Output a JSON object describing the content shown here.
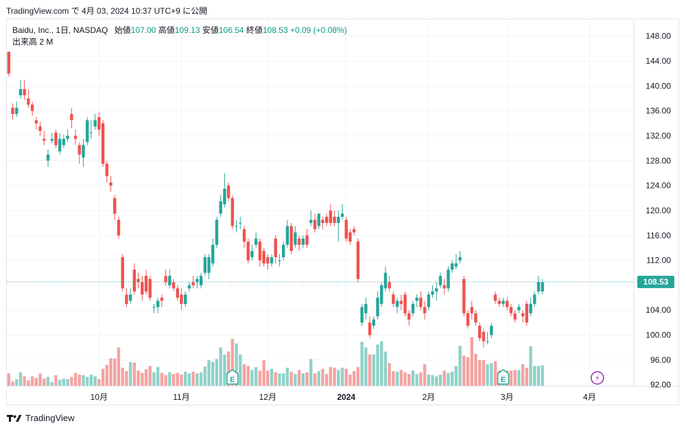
{
  "caption": "TradingView.com で 4月 03, 2024 10:37 UTC+9 に公開",
  "legend": {
    "symbol": "Baidu, Inc., 1日, NASDAQ",
    "open_label": "始値",
    "open": "107.00",
    "high_label": "高値",
    "high": "109.13",
    "low_label": "安値",
    "low": "106.54",
    "close_label": "終値",
    "close": "108.53",
    "change": "+0.09 (+0.08%)",
    "volume_label": "出来高",
    "volume": "2 M"
  },
  "price_badge": "108.53",
  "footer": {
    "brand": "TradingView"
  },
  "colors": {
    "up": "#26a69a",
    "down": "#ef5350",
    "vol_up": "#8fd1c8",
    "vol_down": "#f4a3a1",
    "grid": "#f0f3fa",
    "axis_text": "#131722"
  },
  "chart_data": {
    "type": "candlestick",
    "symbol": "Baidu, Inc. (BIDU), NASDAQ, 1D",
    "y_axis_ticks": [
      92,
      96,
      100,
      104,
      108,
      112,
      116,
      120,
      124,
      128,
      132,
      136,
      140,
      144,
      148
    ],
    "y_tick_labels": [
      "92.00",
      "96.00",
      "100.00",
      "104.00",
      "108.00",
      "112.00",
      "116.00",
      "120.00",
      "124.00",
      "128.00",
      "132.00",
      "136.00",
      "140.00",
      "144.00",
      "148.00"
    ],
    "ylim": [
      91.8,
      150.5
    ],
    "last_price": 108.53,
    "x_axis_labels": [
      {
        "label": "10月",
        "bold": false,
        "index": 23
      },
      {
        "label": "11月",
        "bold": false,
        "index": 44
      },
      {
        "label": "12月",
        "bold": false,
        "index": 66
      },
      {
        "label": "2024",
        "bold": true,
        "index": 86
      },
      {
        "label": "2月",
        "bold": false,
        "index": 107
      },
      {
        "label": "3月",
        "bold": false,
        "index": 127
      },
      {
        "label": "4月",
        "bold": false,
        "index": 148
      }
    ],
    "events": [
      {
        "type": "earnings",
        "label": "E",
        "index": 57
      },
      {
        "type": "earnings",
        "label": "E",
        "index": 126
      },
      {
        "type": "dividend",
        "label": "⚡",
        "index": 150
      }
    ],
    "candles": [
      [
        145.5,
        142.0,
        145.5,
        141.5
      ],
      [
        136.5,
        135.5,
        137.2,
        134.6
      ],
      [
        135.5,
        136.5,
        137.5,
        135.0
      ],
      [
        138.5,
        139.5,
        141.0,
        138.0
      ],
      [
        139.5,
        138.5,
        141.0,
        137.8
      ],
      [
        138.0,
        137.0,
        139.5,
        136.5
      ],
      [
        137.0,
        136.0,
        137.5,
        135.2
      ],
      [
        134.5,
        134.0,
        135.0,
        133.0
      ],
      [
        133.5,
        132.8,
        134.2,
        132.0
      ],
      [
        131.5,
        131.2,
        132.8,
        130.5
      ],
      [
        128.0,
        129.0,
        129.8,
        127.0
      ],
      [
        131.2,
        131.5,
        132.5,
        130.8
      ],
      [
        132.5,
        130.5,
        133.0,
        130.0
      ],
      [
        129.5,
        131.5,
        132.4,
        129.0
      ],
      [
        130.5,
        131.5,
        132.2,
        130.0
      ],
      [
        131.5,
        132.0,
        133.0,
        131.0
      ],
      [
        135.5,
        134.5,
        136.5,
        133.2
      ],
      [
        132.0,
        131.5,
        133.0,
        130.5
      ],
      [
        130.5,
        129.0,
        131.0,
        127.5
      ],
      [
        128.5,
        130.5,
        131.5,
        127.0
      ],
      [
        131.0,
        134.5,
        135.0,
        130.5
      ],
      [
        132.5,
        132.5,
        134.5,
        131.5
      ],
      [
        133.5,
        134.5,
        135.5,
        133.0
      ],
      [
        135.0,
        133.0,
        135.8,
        132.0
      ],
      [
        134.0,
        127.5,
        134.5,
        127.0
      ],
      [
        127.5,
        125.5,
        128.0,
        124.5
      ],
      [
        124.5,
        124.0,
        125.5,
        123.0
      ],
      [
        122.0,
        119.5,
        122.5,
        118.5
      ],
      [
        118.5,
        116.0,
        119.0,
        115.5
      ],
      [
        112.5,
        107.5,
        113.0,
        107.0
      ],
      [
        106.5,
        105.0,
        107.5,
        104.5
      ],
      [
        105.5,
        106.5,
        107.5,
        105.0
      ],
      [
        110.5,
        107.0,
        111.5,
        106.5
      ],
      [
        109.0,
        108.5,
        110.0,
        107.5
      ],
      [
        108.5,
        106.5,
        109.5,
        105.5
      ],
      [
        109.5,
        107.0,
        110.5,
        106.5
      ],
      [
        109.0,
        106.0,
        109.5,
        105.5
      ],
      [
        104.5,
        104.5,
        105.0,
        103.5
      ],
      [
        104.5,
        105.5,
        106.0,
        103.5
      ],
      [
        106.0,
        105.5,
        106.5,
        104.5
      ],
      [
        109.5,
        108.5,
        110.5,
        108.0
      ],
      [
        108.0,
        109.5,
        110.5,
        107.5
      ],
      [
        108.5,
        107.5,
        109.0,
        107.0
      ],
      [
        107.5,
        106.0,
        108.0,
        105.5
      ],
      [
        106.5,
        105.0,
        107.5,
        104.0
      ],
      [
        105.0,
        106.5,
        107.0,
        104.5
      ],
      [
        107.5,
        108.0,
        108.5,
        107.0
      ],
      [
        108.5,
        108.0,
        109.5,
        107.5
      ],
      [
        108.5,
        109.0,
        109.5,
        107.5
      ],
      [
        108.0,
        109.5,
        110.0,
        107.5
      ],
      [
        110.0,
        112.5,
        113.0,
        109.5
      ],
      [
        110.0,
        112.5,
        113.0,
        109.0
      ],
      [
        111.5,
        114.5,
        115.5,
        111.0
      ],
      [
        114.5,
        118.5,
        119.0,
        114.0
      ],
      [
        119.5,
        121.5,
        122.5,
        119.0
      ],
      [
        121.0,
        123.5,
        126.0,
        120.5
      ],
      [
        124.0,
        122.0,
        124.5,
        121.5
      ],
      [
        122.0,
        117.5,
        122.5,
        117.0
      ],
      [
        117.5,
        117.5,
        118.5,
        116.5
      ],
      [
        118.0,
        118.0,
        119.0,
        117.0
      ],
      [
        117.0,
        115.0,
        117.5,
        114.0
      ],
      [
        115.0,
        112.0,
        115.5,
        111.5
      ],
      [
        112.5,
        113.5,
        114.5,
        112.0
      ],
      [
        114.5,
        115.5,
        116.5,
        114.0
      ],
      [
        115.0,
        112.0,
        115.5,
        111.0
      ],
      [
        113.5,
        111.5,
        114.0,
        111.0
      ],
      [
        112.5,
        111.5,
        113.0,
        110.5
      ],
      [
        111.5,
        112.5,
        113.0,
        111.0
      ],
      [
        115.5,
        112.5,
        116.0,
        111.5
      ],
      [
        112.0,
        112.0,
        113.0,
        111.0
      ],
      [
        112.5,
        114.5,
        115.0,
        112.0
      ],
      [
        114.5,
        117.5,
        118.5,
        114.0
      ],
      [
        117.5,
        113.5,
        118.0,
        113.0
      ],
      [
        114.5,
        116.5,
        117.5,
        114.0
      ],
      [
        115.5,
        114.5,
        116.0,
        113.5
      ],
      [
        114.5,
        115.5,
        116.0,
        114.0
      ],
      [
        116.0,
        114.5,
        117.0,
        114.0
      ],
      [
        118.0,
        118.5,
        120.0,
        117.5
      ],
      [
        118.5,
        117.0,
        119.5,
        116.5
      ],
      [
        117.5,
        119.5,
        119.5,
        117.0
      ],
      [
        118.5,
        118.0,
        119.0,
        117.0
      ],
      [
        119.0,
        118.0,
        119.5,
        117.5
      ],
      [
        120.0,
        118.0,
        121.0,
        117.5
      ],
      [
        119.0,
        118.0,
        120.0,
        117.5
      ],
      [
        118.0,
        119.0,
        120.0,
        115.0
      ],
      [
        119.0,
        119.5,
        121.0,
        118.5
      ],
      [
        118.5,
        115.5,
        119.0,
        115.0
      ],
      [
        116.5,
        115.0,
        117.0,
        114.5
      ],
      [
        117.0,
        116.5,
        117.5,
        116.0
      ],
      [
        115.0,
        109.0,
        115.5,
        108.5
      ],
      [
        102.0,
        104.5,
        105.0,
        101.5
      ],
      [
        103.5,
        105.0,
        106.0,
        102.5
      ],
      [
        102.0,
        100.0,
        103.0,
        99.5
      ],
      [
        101.5,
        102.5,
        103.0,
        101.0
      ],
      [
        103.0,
        106.0,
        107.0,
        102.5
      ],
      [
        105.0,
        108.0,
        108.5,
        104.5
      ],
      [
        107.5,
        110.0,
        111.0,
        107.0
      ],
      [
        108.5,
        107.5,
        109.5,
        107.0
      ],
      [
        106.5,
        105.0,
        107.0,
        104.5
      ],
      [
        104.5,
        105.5,
        106.0,
        103.5
      ],
      [
        105.5,
        105.0,
        106.5,
        104.0
      ],
      [
        106.5,
        103.5,
        107.0,
        103.0
      ],
      [
        103.5,
        102.5,
        104.0,
        101.5
      ],
      [
        103.5,
        105.0,
        105.5,
        103.0
      ],
      [
        105.5,
        106.0,
        106.5,
        104.5
      ],
      [
        106.0,
        104.5,
        107.0,
        104.0
      ],
      [
        104.5,
        103.5,
        105.5,
        102.5
      ],
      [
        104.5,
        106.5,
        107.0,
        104.0
      ],
      [
        106.5,
        107.0,
        108.0,
        106.0
      ],
      [
        107.0,
        107.5,
        108.5,
        105.5
      ],
      [
        108.0,
        109.5,
        110.0,
        107.5
      ],
      [
        108.0,
        107.5,
        109.0,
        106.5
      ],
      [
        107.5,
        110.5,
        111.0,
        107.0
      ],
      [
        110.5,
        111.5,
        112.0,
        110.0
      ],
      [
        111.0,
        111.5,
        113.0,
        110.5
      ],
      [
        112.0,
        112.5,
        113.5,
        111.5
      ],
      [
        109.0,
        103.5,
        109.5,
        103.0
      ],
      [
        103.5,
        101.5,
        104.0,
        101.0
      ],
      [
        104.5,
        103.5,
        105.5,
        102.5
      ],
      [
        103.5,
        102.0,
        104.0,
        101.5
      ],
      [
        101.5,
        99.5,
        102.0,
        99.0
      ],
      [
        100.5,
        99.0,
        101.0,
        98.0
      ],
      [
        99.0,
        99.0,
        100.5,
        98.5
      ],
      [
        100.0,
        101.5,
        102.0,
        99.5
      ],
      [
        106.5,
        105.5,
        107.0,
        105.0
      ],
      [
        105.5,
        105.0,
        106.0,
        104.5
      ],
      [
        105.0,
        105.5,
        106.0,
        104.5
      ],
      [
        105.5,
        104.5,
        106.0,
        104.0
      ],
      [
        104.5,
        103.5,
        105.0,
        103.0
      ],
      [
        103.5,
        102.5,
        104.0,
        102.0
      ],
      [
        104.0,
        104.5,
        105.0,
        103.5
      ],
      [
        103.5,
        103.0,
        104.0,
        102.0
      ],
      [
        105.0,
        102.0,
        105.5,
        101.5
      ],
      [
        103.5,
        105.0,
        106.0,
        103.0
      ],
      [
        105.0,
        106.5,
        107.0,
        104.5
      ],
      [
        107.0,
        108.5,
        109.5,
        106.5
      ],
      [
        107.0,
        108.5,
        109.0,
        106.5
      ]
    ],
    "volume_levels": [
      0.22,
      0.08,
      0.12,
      0.24,
      0.17,
      0.1,
      0.17,
      0.14,
      0.22,
      0.13,
      0.16,
      0.07,
      0.19,
      0.11,
      0.13,
      0.12,
      0.16,
      0.23,
      0.2,
      0.19,
      0.16,
      0.2,
      0.17,
      0.12,
      0.3,
      0.37,
      0.48,
      0.48,
      0.67,
      0.32,
      0.26,
      0.42,
      0.41,
      0.27,
      0.23,
      0.29,
      0.35,
      0.24,
      0.33,
      0.23,
      0.19,
      0.24,
      0.21,
      0.23,
      0.2,
      0.25,
      0.22,
      0.25,
      0.22,
      0.24,
      0.34,
      0.45,
      0.42,
      0.47,
      0.67,
      0.55,
      0.6,
      0.82,
      0.74,
      0.55,
      0.38,
      0.35,
      0.28,
      0.33,
      0.27,
      0.45,
      0.27,
      0.3,
      0.24,
      0.22,
      0.22,
      0.32,
      0.25,
      0.21,
      0.28,
      0.22,
      0.24,
      0.47,
      0.22,
      0.26,
      0.3,
      0.21,
      0.33,
      0.32,
      0.28,
      0.32,
      0.3,
      0.2,
      0.26,
      0.33,
      0.77,
      0.67,
      0.55,
      0.55,
      0.72,
      0.78,
      0.6,
      0.4,
      0.26,
      0.25,
      0.28,
      0.24,
      0.21,
      0.27,
      0.21,
      0.24,
      0.38,
      0.2,
      0.19,
      0.17,
      0.2,
      0.27,
      0.23,
      0.25,
      0.35,
      0.7,
      0.53,
      0.5,
      0.85,
      0.56,
      0.45,
      0.45,
      0.38,
      0.4,
      0.43,
      0.27,
      0.24,
      0.27,
      0.27,
      0.28,
      0.28,
      0.38,
      0.32,
      0.69,
      0.35,
      0.35,
      0.36
    ]
  }
}
